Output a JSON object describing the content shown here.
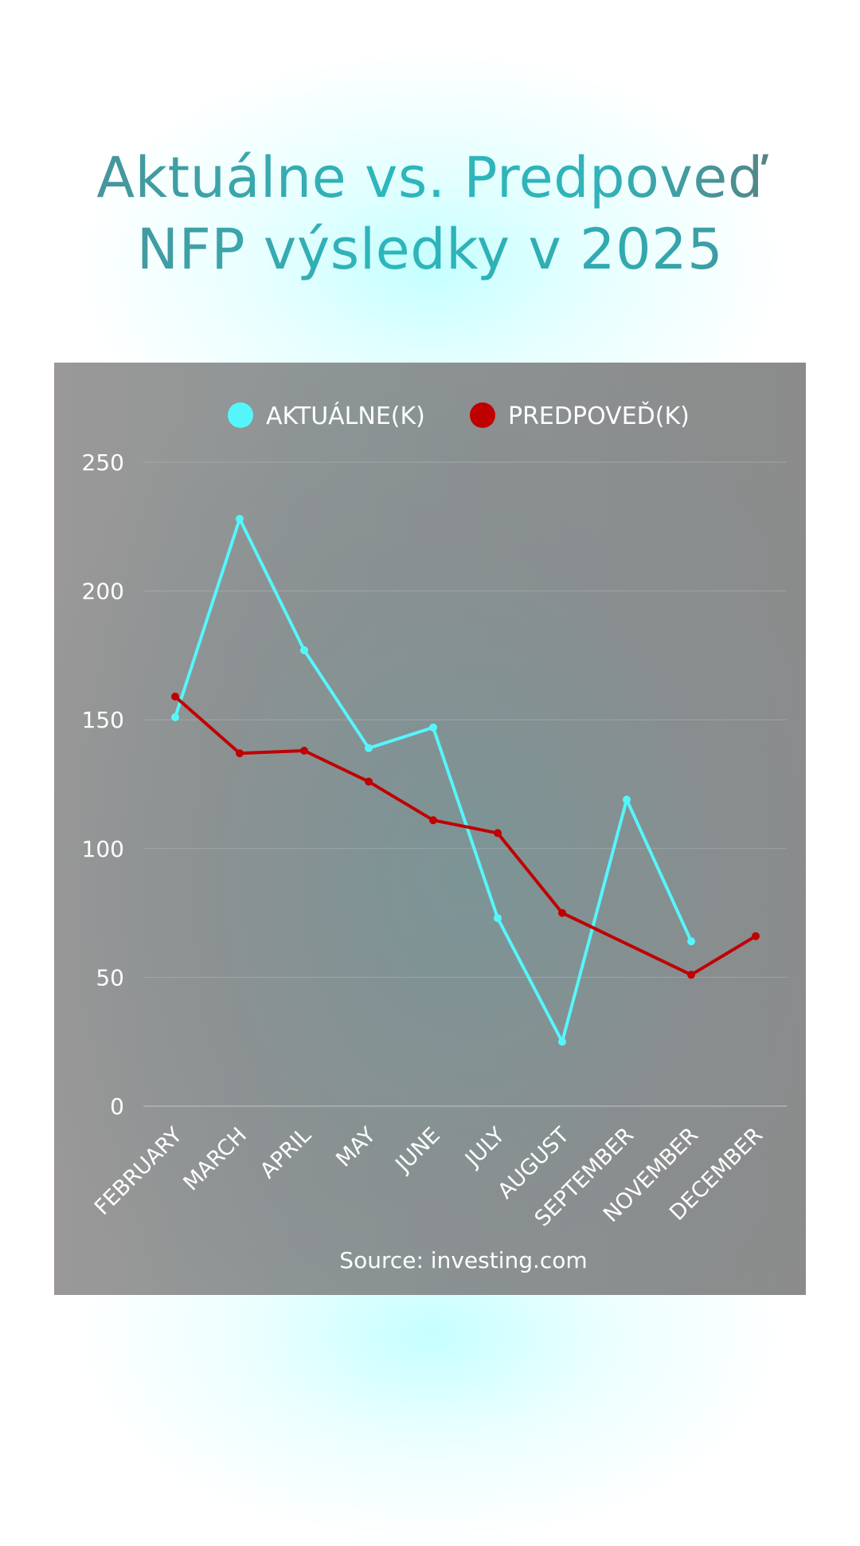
{
  "header": {
    "title_line1": "Aktuálne vs. Predpoveď",
    "title_line2": "NFP výsledky v 2025"
  },
  "colors": {
    "actual": "#55f6fb",
    "forecast": "#c00000",
    "grid": "#b4b8b8"
  },
  "chart_data": {
    "type": "line",
    "title": "Aktuálne vs. Predpoveď NFP výsledky v 2025",
    "categories": [
      "FEBRUARY",
      "MARCH",
      "APRIL",
      "MAY",
      "JUNE",
      "JULY",
      "AUGUST",
      "SEPTEMBER",
      "NOVEMBER",
      "DECEMBER"
    ],
    "series": [
      {
        "name": "AKTUÁLNE(K)",
        "values": [
          151,
          228,
          177,
          139,
          147,
          73,
          25,
          119,
          64,
          null
        ]
      },
      {
        "name": "PREDPOVEĎ(K)",
        "values": [
          159,
          137,
          138,
          126,
          111,
          106,
          75,
          null,
          51,
          66
        ]
      }
    ],
    "ylim": [
      0,
      250
    ],
    "yticks": [
      0,
      50,
      100,
      150,
      200,
      250
    ],
    "grid": true,
    "legend": "top-center",
    "source": "Source: investing.com"
  }
}
